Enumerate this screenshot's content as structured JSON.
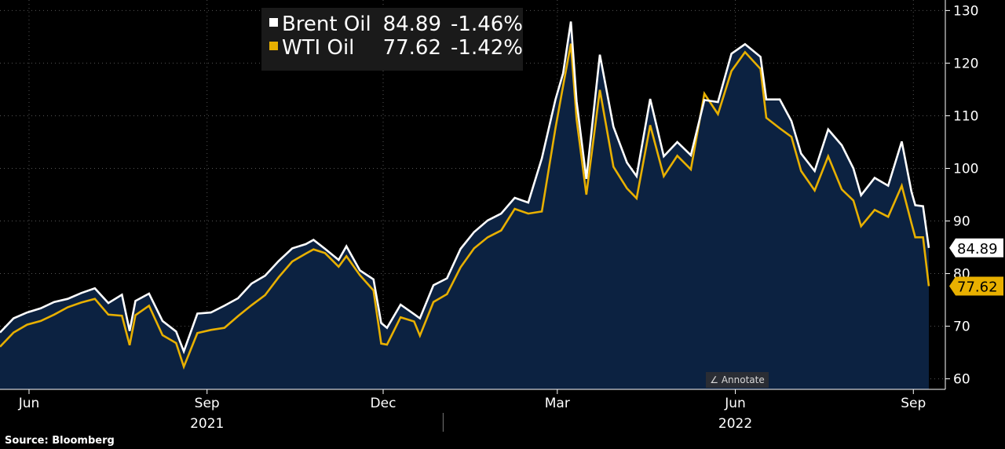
{
  "legend": {
    "brent": {
      "name": "Brent Oil",
      "value": "84.89",
      "change": "-1.46%"
    },
    "wti": {
      "name": "WTI Oil",
      "value": "77.62",
      "change": "-1.42%"
    }
  },
  "annotate_label": "Annotate",
  "source": "Source:  Bloomberg",
  "colors": {
    "brent": "#ffffff",
    "wti": "#e8b000",
    "fill": "#0c2241",
    "background": "#000000"
  },
  "chart_data": {
    "type": "line",
    "x_range": [
      "2021-05-17",
      "2022-09-09"
    ],
    "ylim": [
      58,
      132
    ],
    "y_ticks": [
      60,
      70,
      80,
      90,
      100,
      110,
      120,
      130
    ],
    "x_ticks": [
      {
        "label": "Jun",
        "date": "2021-06-01"
      },
      {
        "label": "Sep",
        "date": "2021-09-01"
      },
      {
        "label": "Dec",
        "date": "2021-12-01"
      },
      {
        "label": "Mar",
        "date": "2022-03-01"
      },
      {
        "label": "Jun",
        "date": "2022-06-01"
      },
      {
        "label": "Sep",
        "date": "2022-09-01"
      }
    ],
    "year_labels": [
      {
        "label": "2021",
        "date": "2021-09-01"
      },
      {
        "label": "2022",
        "date": "2022-06-01"
      }
    ],
    "year_divider_date": "2022-01-01",
    "last_value_labels": {
      "brent": "84.89",
      "wti": "77.62"
    },
    "series": [
      {
        "name": "Brent Oil",
        "points": [
          [
            "2021-05-17",
            68.8
          ],
          [
            "2021-05-24",
            71.5
          ],
          [
            "2021-05-31",
            72.6
          ],
          [
            "2021-06-07",
            73.4
          ],
          [
            "2021-06-14",
            74.6
          ],
          [
            "2021-06-21",
            75.2
          ],
          [
            "2021-06-28",
            76.3
          ],
          [
            "2021-07-05",
            77.2
          ],
          [
            "2021-07-12",
            74.4
          ],
          [
            "2021-07-19",
            76.0
          ],
          [
            "2021-07-23",
            69.1
          ],
          [
            "2021-07-26",
            74.8
          ],
          [
            "2021-08-02",
            76.2
          ],
          [
            "2021-08-09",
            71.0
          ],
          [
            "2021-08-16",
            69.0
          ],
          [
            "2021-08-20",
            65.2
          ],
          [
            "2021-08-27",
            72.4
          ],
          [
            "2021-09-03",
            72.6
          ],
          [
            "2021-09-10",
            73.9
          ],
          [
            "2021-09-17",
            75.3
          ],
          [
            "2021-09-24",
            78.1
          ],
          [
            "2021-10-01",
            79.6
          ],
          [
            "2021-10-08",
            82.4
          ],
          [
            "2021-10-15",
            84.8
          ],
          [
            "2021-10-22",
            85.6
          ],
          [
            "2021-10-26",
            86.4
          ],
          [
            "2021-11-01",
            84.7
          ],
          [
            "2021-11-08",
            82.6
          ],
          [
            "2021-11-12",
            85.2
          ],
          [
            "2021-11-19",
            80.6
          ],
          [
            "2021-11-26",
            78.9
          ],
          [
            "2021-11-30",
            70.6
          ],
          [
            "2021-12-03",
            69.7
          ],
          [
            "2021-12-10",
            74.1
          ],
          [
            "2021-12-17",
            72.3
          ],
          [
            "2021-12-20",
            71.5
          ],
          [
            "2021-12-27",
            77.8
          ],
          [
            "2022-01-03",
            79.1
          ],
          [
            "2022-01-10",
            84.7
          ],
          [
            "2022-01-17",
            87.9
          ],
          [
            "2022-01-24",
            90.1
          ],
          [
            "2022-01-31",
            91.4
          ],
          [
            "2022-02-07",
            94.4
          ],
          [
            "2022-02-14",
            93.5
          ],
          [
            "2022-02-21",
            101.9
          ],
          [
            "2022-02-28",
            113.0
          ],
          [
            "2022-03-04",
            118.1
          ],
          [
            "2022-03-08",
            127.9
          ],
          [
            "2022-03-11",
            112.7
          ],
          [
            "2022-03-16",
            98.0
          ],
          [
            "2022-03-23",
            121.6
          ],
          [
            "2022-03-30",
            107.9
          ],
          [
            "2022-04-06",
            101.1
          ],
          [
            "2022-04-11",
            98.5
          ],
          [
            "2022-04-18",
            113.2
          ],
          [
            "2022-04-25",
            102.3
          ],
          [
            "2022-05-02",
            105.0
          ],
          [
            "2022-05-09",
            102.5
          ],
          [
            "2022-05-16",
            113.0
          ],
          [
            "2022-05-23",
            112.6
          ],
          [
            "2022-05-30",
            121.8
          ],
          [
            "2022-06-06",
            123.6
          ],
          [
            "2022-06-14",
            121.2
          ],
          [
            "2022-06-17",
            113.1
          ],
          [
            "2022-06-24",
            113.1
          ],
          [
            "2022-06-30",
            109.0
          ],
          [
            "2022-07-05",
            102.8
          ],
          [
            "2022-07-12",
            99.5
          ],
          [
            "2022-07-19",
            107.4
          ],
          [
            "2022-07-26",
            104.4
          ],
          [
            "2022-08-01",
            100.0
          ],
          [
            "2022-08-05",
            94.9
          ],
          [
            "2022-08-12",
            98.2
          ],
          [
            "2022-08-19",
            96.7
          ],
          [
            "2022-08-26",
            105.1
          ],
          [
            "2022-08-31",
            95.6
          ],
          [
            "2022-09-02",
            93.0
          ],
          [
            "2022-09-06",
            92.8
          ],
          [
            "2022-09-09",
            84.89
          ]
        ]
      },
      {
        "name": "WTI Oil",
        "points": [
          [
            "2021-05-17",
            66.1
          ],
          [
            "2021-05-24",
            68.8
          ],
          [
            "2021-05-31",
            70.3
          ],
          [
            "2021-06-07",
            71.0
          ],
          [
            "2021-06-14",
            72.2
          ],
          [
            "2021-06-21",
            73.6
          ],
          [
            "2021-06-28",
            74.5
          ],
          [
            "2021-07-05",
            75.2
          ],
          [
            "2021-07-12",
            72.2
          ],
          [
            "2021-07-19",
            72.0
          ],
          [
            "2021-07-23",
            66.4
          ],
          [
            "2021-07-26",
            72.1
          ],
          [
            "2021-08-02",
            73.9
          ],
          [
            "2021-08-09",
            68.3
          ],
          [
            "2021-08-16",
            66.8
          ],
          [
            "2021-08-20",
            62.3
          ],
          [
            "2021-08-27",
            68.7
          ],
          [
            "2021-09-03",
            69.3
          ],
          [
            "2021-09-10",
            69.7
          ],
          [
            "2021-09-17",
            71.9
          ],
          [
            "2021-09-24",
            74.0
          ],
          [
            "2021-10-01",
            75.9
          ],
          [
            "2021-10-08",
            79.3
          ],
          [
            "2021-10-15",
            82.3
          ],
          [
            "2021-10-22",
            83.8
          ],
          [
            "2021-10-26",
            84.6
          ],
          [
            "2021-11-01",
            83.9
          ],
          [
            "2021-11-08",
            81.3
          ],
          [
            "2021-11-12",
            83.3
          ],
          [
            "2021-11-19",
            79.7
          ],
          [
            "2021-11-26",
            76.8
          ],
          [
            "2021-11-30",
            66.7
          ],
          [
            "2021-12-03",
            66.5
          ],
          [
            "2021-12-10",
            71.7
          ],
          [
            "2021-12-17",
            70.9
          ],
          [
            "2021-12-20",
            68.2
          ],
          [
            "2021-12-27",
            74.6
          ],
          [
            "2022-01-03",
            76.1
          ],
          [
            "2022-01-10",
            81.2
          ],
          [
            "2022-01-17",
            84.8
          ],
          [
            "2022-01-24",
            86.9
          ],
          [
            "2022-01-31",
            88.2
          ],
          [
            "2022-02-07",
            92.3
          ],
          [
            "2022-02-14",
            91.4
          ],
          [
            "2022-02-21",
            91.8
          ],
          [
            "2022-02-28",
            107.5
          ],
          [
            "2022-03-04",
            115.7
          ],
          [
            "2022-03-08",
            123.7
          ],
          [
            "2022-03-11",
            109.3
          ],
          [
            "2022-03-16",
            95.0
          ],
          [
            "2022-03-23",
            114.9
          ],
          [
            "2022-03-30",
            100.3
          ],
          [
            "2022-04-06",
            96.2
          ],
          [
            "2022-04-11",
            94.3
          ],
          [
            "2022-04-18",
            108.2
          ],
          [
            "2022-04-25",
            98.5
          ],
          [
            "2022-05-02",
            102.4
          ],
          [
            "2022-05-09",
            99.8
          ],
          [
            "2022-05-16",
            114.2
          ],
          [
            "2022-05-23",
            110.3
          ],
          [
            "2022-05-30",
            118.5
          ],
          [
            "2022-06-06",
            122.1
          ],
          [
            "2022-06-14",
            118.9
          ],
          [
            "2022-06-17",
            109.6
          ],
          [
            "2022-06-24",
            107.6
          ],
          [
            "2022-06-30",
            106.0
          ],
          [
            "2022-07-05",
            99.5
          ],
          [
            "2022-07-12",
            95.8
          ],
          [
            "2022-07-19",
            102.3
          ],
          [
            "2022-07-26",
            96.0
          ],
          [
            "2022-08-01",
            93.9
          ],
          [
            "2022-08-05",
            89.0
          ],
          [
            "2022-08-12",
            92.1
          ],
          [
            "2022-08-19",
            90.8
          ],
          [
            "2022-08-26",
            96.7
          ],
          [
            "2022-08-31",
            89.6
          ],
          [
            "2022-09-02",
            86.9
          ],
          [
            "2022-09-06",
            86.9
          ],
          [
            "2022-09-09",
            77.62
          ]
        ]
      }
    ]
  }
}
